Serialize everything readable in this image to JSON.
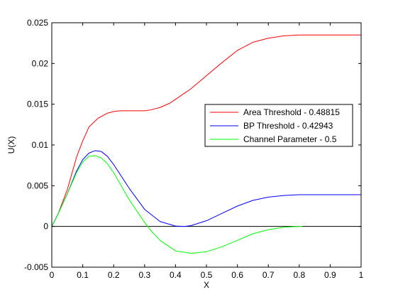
{
  "chart_data": {
    "type": "line",
    "xlabel": "X",
    "ylabel": "U(X)",
    "xlim": [
      0,
      1
    ],
    "ylim": [
      -0.005,
      0.025
    ],
    "xticks": [
      0,
      0.1,
      0.2,
      0.3,
      0.4,
      0.5,
      0.6,
      0.7,
      0.8,
      0.9,
      1
    ],
    "xtick_labels": [
      "0",
      "0.1",
      "0.2",
      "0.3",
      "0.4",
      "0.5",
      "0.6",
      "0.7",
      "0.8",
      "0.9",
      "1"
    ],
    "yticks": [
      -0.005,
      0,
      0.005,
      0.01,
      0.015,
      0.02,
      0.025
    ],
    "ytick_labels": [
      "-0.005",
      "0",
      "0.005",
      "0.01",
      "0.015",
      "0.02",
      "0.025"
    ],
    "grid": false,
    "legend_position": "right-middle",
    "zero_line": {
      "y": 0,
      "color": "#000000"
    },
    "series": [
      {
        "name": "Area Threshold - 0.48815",
        "color": "#ff0000",
        "x": [
          0,
          0.02,
          0.05,
          0.08,
          0.1,
          0.12,
          0.15,
          0.18,
          0.2,
          0.22,
          0.25,
          0.28,
          0.3,
          0.32,
          0.35,
          0.38,
          0.4,
          0.45,
          0.5,
          0.55,
          0.6,
          0.65,
          0.7,
          0.75,
          0.8,
          0.85,
          0.9,
          0.95,
          1.0
        ],
        "y": [
          0,
          0.0015,
          0.0045,
          0.0085,
          0.0105,
          0.0122,
          0.0133,
          0.0139,
          0.0141,
          0.0142,
          0.0142,
          0.0142,
          0.0142,
          0.0143,
          0.0146,
          0.0151,
          0.0156,
          0.0169,
          0.0185,
          0.0201,
          0.0216,
          0.0226,
          0.0231,
          0.0234,
          0.0235,
          0.0235,
          0.0235,
          0.0235,
          0.0235
        ]
      },
      {
        "name": "BP Threshold - 0.42943",
        "color": "#0000ff",
        "x": [
          0,
          0.02,
          0.05,
          0.08,
          0.1,
          0.12,
          0.14,
          0.16,
          0.18,
          0.2,
          0.25,
          0.3,
          0.35,
          0.4,
          0.43,
          0.45,
          0.5,
          0.55,
          0.6,
          0.65,
          0.7,
          0.75,
          0.8,
          0.85,
          0.9,
          0.95,
          1.0
        ],
        "y": [
          0,
          0.0015,
          0.004,
          0.0068,
          0.0082,
          0.009,
          0.0093,
          0.0092,
          0.0086,
          0.0076,
          0.0047,
          0.0021,
          0.0006,
          5e-05,
          0.0,
          0.0001,
          0.0007,
          0.0016,
          0.0025,
          0.0032,
          0.0036,
          0.0038,
          0.0039,
          0.0039,
          0.0039,
          0.0039,
          0.0039
        ]
      },
      {
        "name": "Channel Parameter - 0.5",
        "color": "#00ff00",
        "x": [
          0,
          0.02,
          0.05,
          0.08,
          0.1,
          0.12,
          0.14,
          0.16,
          0.18,
          0.2,
          0.25,
          0.3,
          0.32,
          0.35,
          0.4,
          0.45,
          0.5,
          0.55,
          0.6,
          0.65,
          0.7,
          0.75,
          0.8,
          0.81
        ],
        "y": [
          0,
          0.0015,
          0.004,
          0.0066,
          0.0079,
          0.0086,
          0.0087,
          0.0084,
          0.0077,
          0.0066,
          0.0033,
          0.0005,
          -0.0005,
          -0.0017,
          -0.003,
          -0.0033,
          -0.0031,
          -0.0025,
          -0.0017,
          -0.0009,
          -0.0004,
          -0.0001,
          0.0,
          0.0
        ]
      }
    ]
  }
}
